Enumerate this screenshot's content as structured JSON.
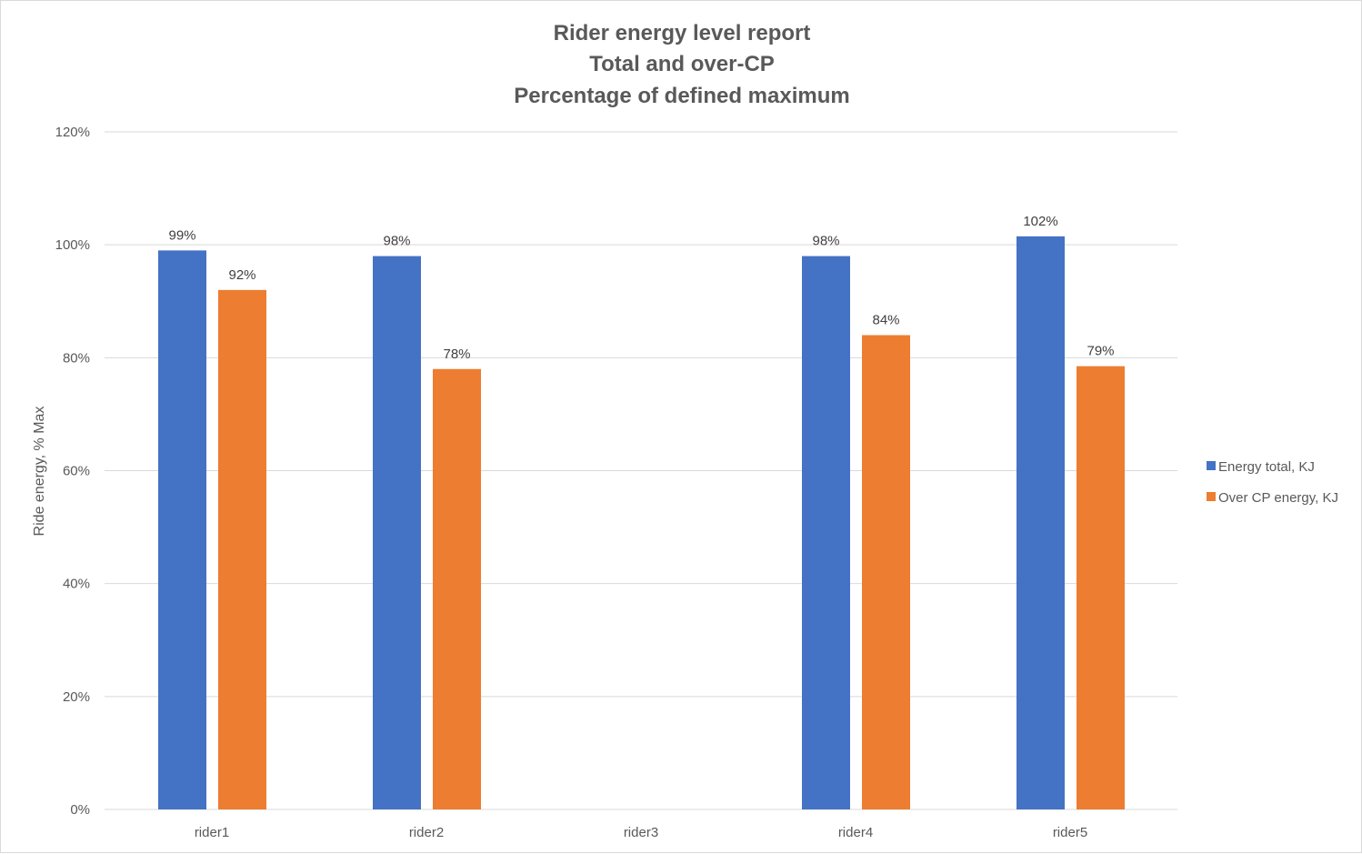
{
  "chart_data": {
    "type": "bar",
    "title_lines": [
      "Rider energy level report",
      "Total and over-CP",
      "Percentage of defined maximum"
    ],
    "xlabel": "",
    "ylabel": "Ride energy, % Max",
    "categories": [
      "rider1",
      "rider2",
      "rider3",
      "rider4",
      "rider5"
    ],
    "series": [
      {
        "name": "Energy total, KJ",
        "color": "#4472c4",
        "values": [
          99,
          98,
          null,
          98,
          101.5
        ],
        "labels": [
          "99%",
          "98%",
          "",
          "98%",
          "102%"
        ]
      },
      {
        "name": "Over CP energy, KJ",
        "color": "#ed7d31",
        "values": [
          92,
          78,
          null,
          84,
          78.5
        ],
        "labels": [
          "92%",
          "78%",
          "",
          "84%",
          "79%"
        ]
      }
    ],
    "ylim": [
      0,
      120
    ],
    "yticks": [
      0,
      20,
      40,
      60,
      80,
      100,
      120
    ],
    "ytick_labels": [
      "0%",
      "20%",
      "40%",
      "60%",
      "80%",
      "100%",
      "120%"
    ],
    "grid": true,
    "legend_position": "right"
  }
}
